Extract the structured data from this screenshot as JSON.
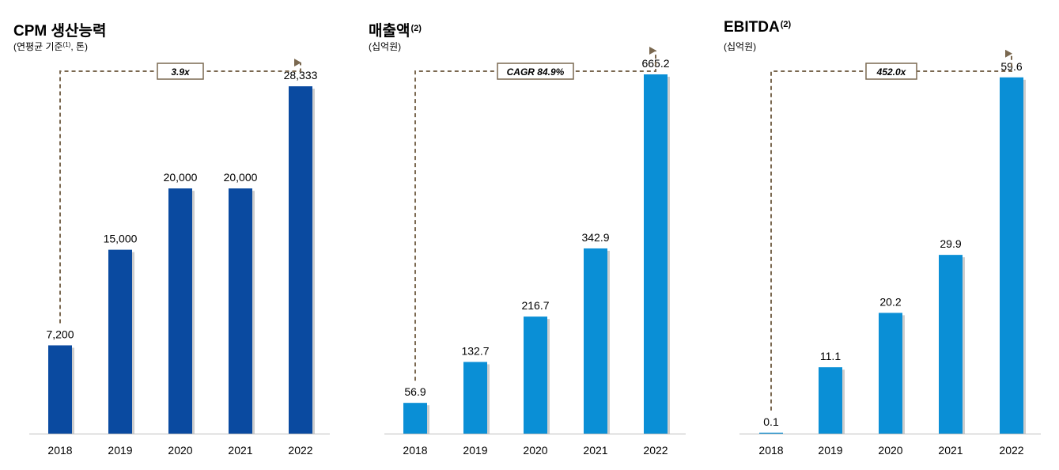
{
  "categories": [
    "2018",
    "2019",
    "2020",
    "2021",
    "2022"
  ],
  "chart_data": [
    {
      "type": "bar",
      "title": "CPM 생산능력",
      "title_note": "",
      "subtitle_pre": "(연평균 기준",
      "subtitle_note": "(1)",
      "subtitle_post": ", 톤)",
      "categories": [
        "2018",
        "2019",
        "2020",
        "2021",
        "2022"
      ],
      "values": [
        7200,
        15000,
        20000,
        20000,
        28333
      ],
      "value_labels": [
        "7,200",
        "15,000",
        "20,000",
        "20,000",
        "28,333"
      ],
      "annotation": "3.9x",
      "ylim": [
        0,
        31500
      ],
      "color": "#0a4aa0",
      "grid": false
    },
    {
      "type": "bar",
      "title": "매출액",
      "title_note": "(2)",
      "subtitle_pre": "(십억원)",
      "subtitle_note": "",
      "subtitle_post": "",
      "categories": [
        "2018",
        "2019",
        "2020",
        "2021",
        "2022"
      ],
      "values": [
        56.9,
        132.7,
        216.7,
        342.9,
        665.2
      ],
      "value_labels": [
        "56.9",
        "132.7",
        "216.7",
        "342.9",
        "665.2"
      ],
      "annotation": "CAGR 84.9%",
      "ylim": [
        0,
        715
      ],
      "color": "#0a8fd6",
      "grid": false
    },
    {
      "type": "bar",
      "title": "EBITDA",
      "title_note": "(2)",
      "subtitle_pre": "(십억원)",
      "subtitle_note": "",
      "subtitle_post": "",
      "categories": [
        "2018",
        "2019",
        "2020",
        "2021",
        "2022"
      ],
      "values": [
        0.1,
        11.1,
        20.2,
        29.9,
        59.6
      ],
      "value_labels": [
        "0.1",
        "11.1",
        "20.2",
        "29.9",
        "59.6"
      ],
      "annotation": "452.0x",
      "ylim": [
        0,
        64.6
      ],
      "color": "#0a8fd6",
      "grid": false
    }
  ],
  "colors": {
    "connector": "#7a6850",
    "axis": "#bfbfbf",
    "shadow": "#b8b8b8"
  }
}
